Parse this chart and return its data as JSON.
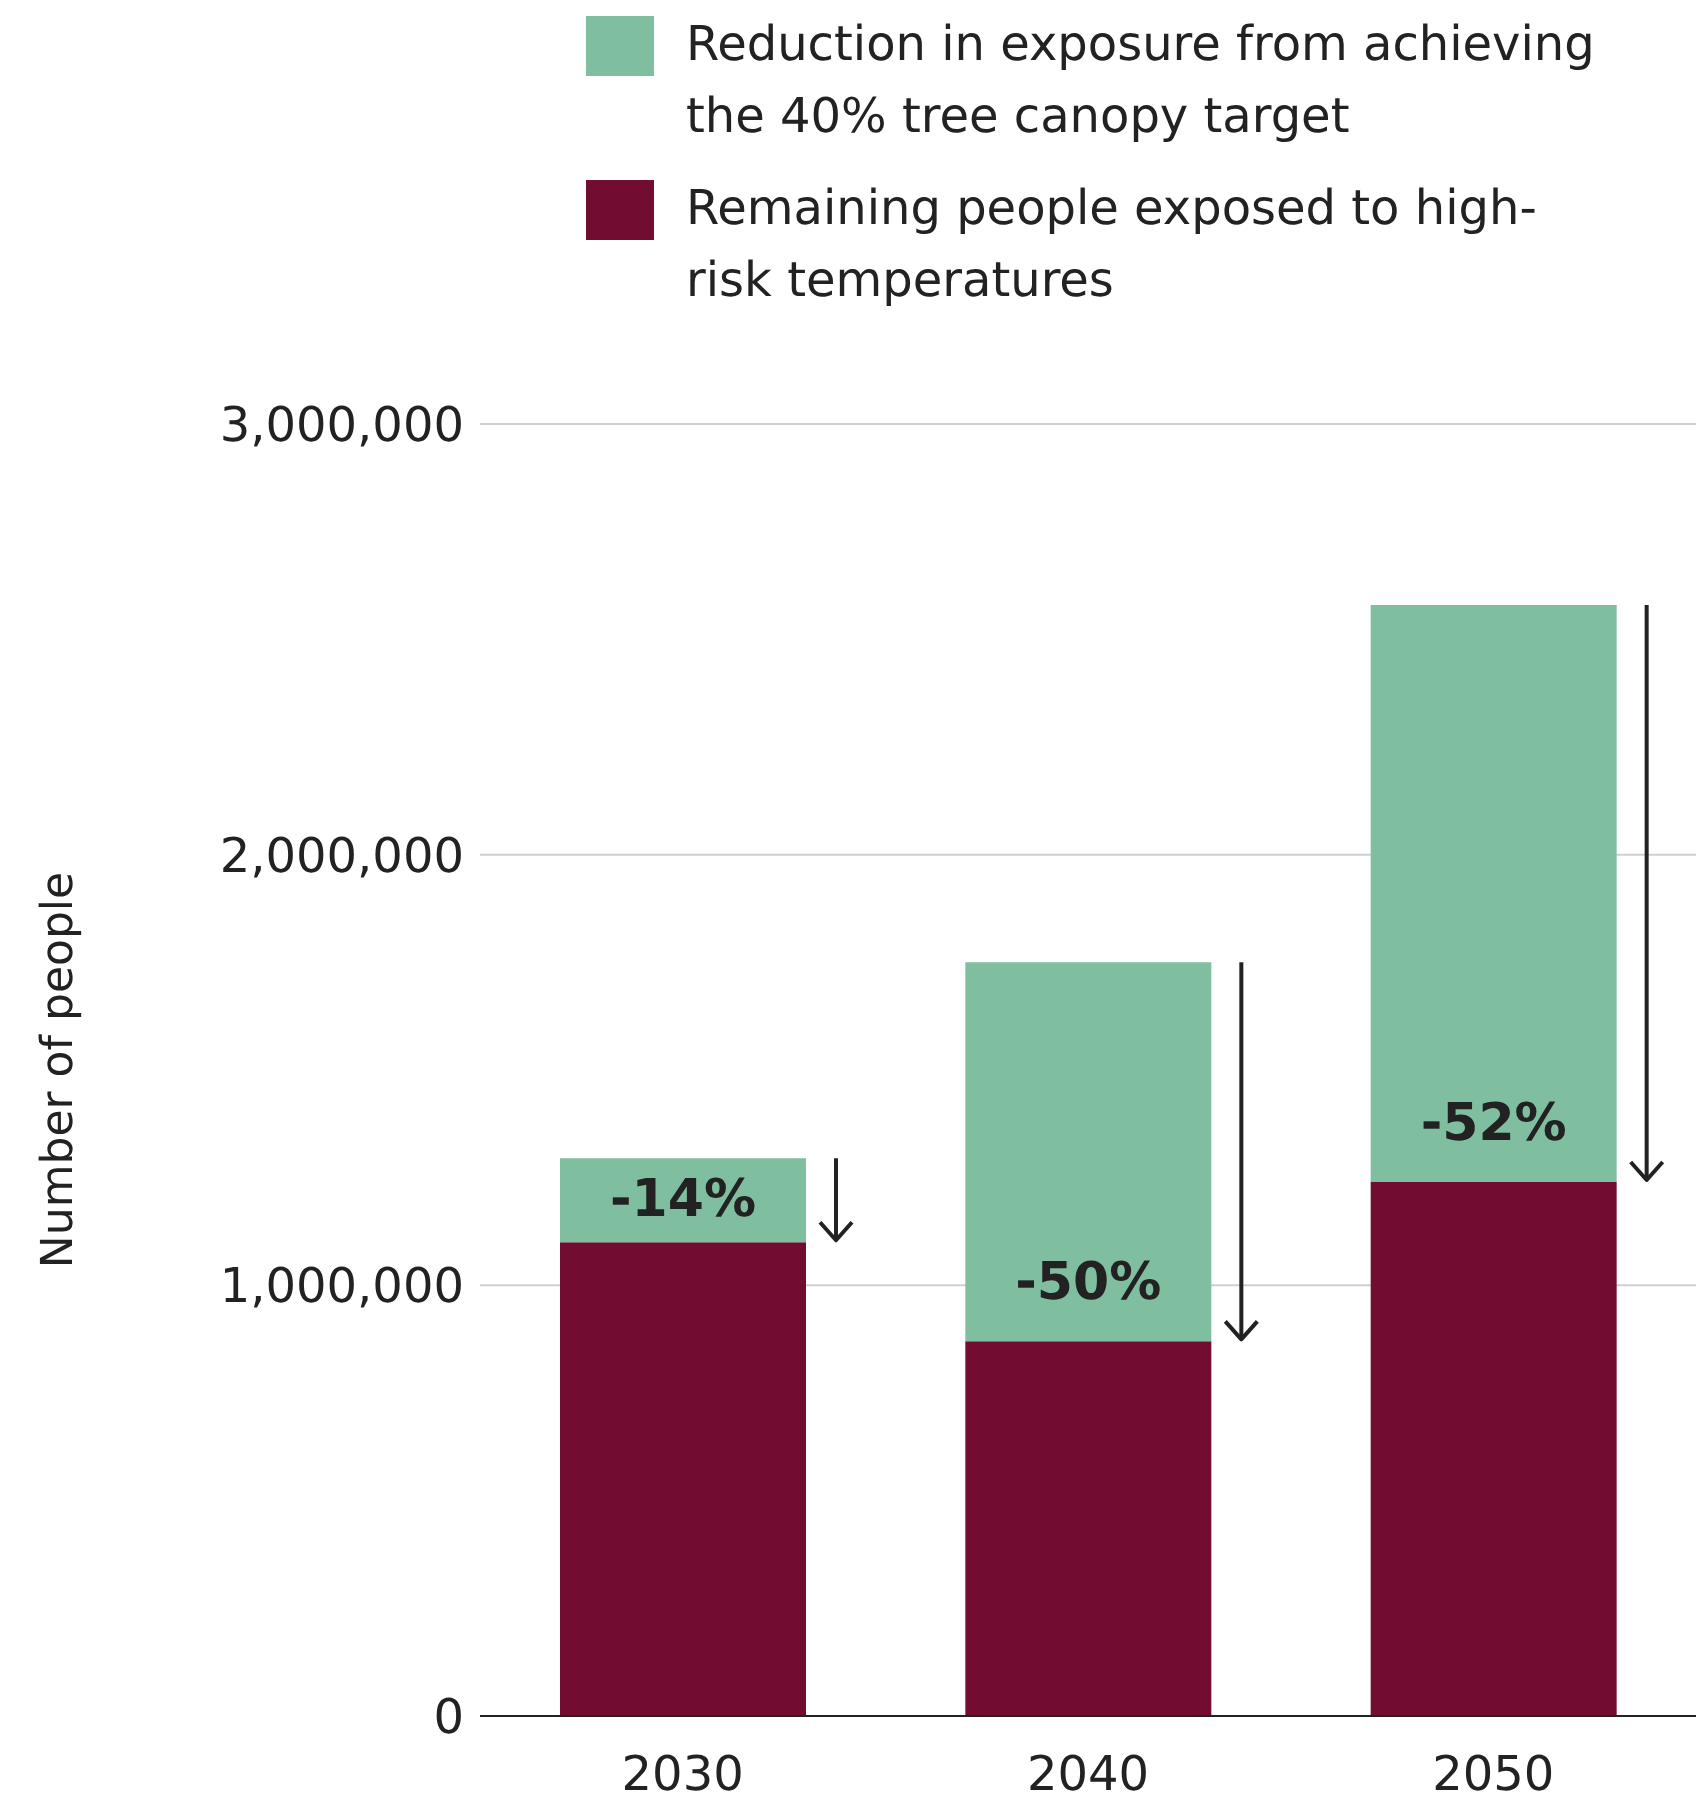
{
  "chart_data": {
    "type": "bar",
    "stacked": true,
    "categories": [
      "2030",
      "2040",
      "2050"
    ],
    "ylabel": "Number of people",
    "series": [
      {
        "name": "Remaining people exposed to high-risk temperatures",
        "color": "#720c30",
        "values": [
          1100000,
          870000,
          1240000
        ]
      },
      {
        "name": "Reduction in exposure from achieving the 40% tree canopy target",
        "color": "#7fbf9f",
        "values": [
          195000,
          880000,
          1340000
        ]
      }
    ],
    "ylim": [
      0,
      3000000
    ],
    "yticks": [
      0,
      {
        "value": 1000000,
        "label": "1,000,000"
      },
      {
        "value": 2000000,
        "label": "2,000,000"
      },
      {
        "value": 3000000,
        "label": "3,000,000"
      }
    ],
    "grid": "y",
    "legend": "top",
    "annotations": [
      "-14%",
      "-50%",
      "-52%"
    ]
  }
}
